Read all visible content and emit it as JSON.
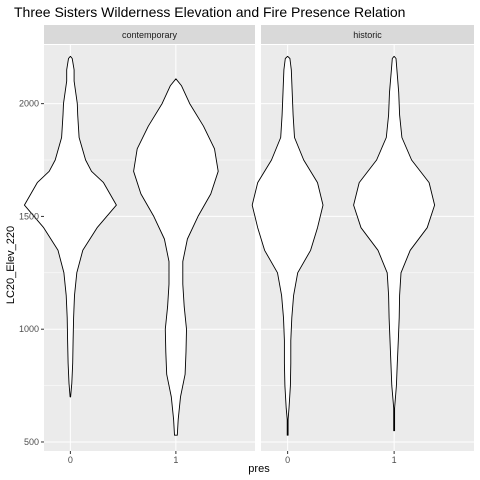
{
  "chart_data": {
    "type": "violin",
    "title": "Three Sisters Wilderness Elevation and Fire Presence Relation",
    "xlabel": "pres",
    "ylabel": "LC20_Elev_220",
    "ylim": [
      460,
      2260
    ],
    "yticks": [
      500,
      1000,
      1500,
      2000
    ],
    "categories": [
      "0",
      "1"
    ],
    "grid": true,
    "facets": [
      {
        "name": "contemporary",
        "violins": [
          {
            "category": "0",
            "density": [
              [
                700,
                0.005
              ],
              [
                760,
                0.03
              ],
              [
                850,
                0.05
              ],
              [
                950,
                0.06
              ],
              [
                1050,
                0.07
              ],
              [
                1150,
                0.09
              ],
              [
                1250,
                0.14
              ],
              [
                1350,
                0.27
              ],
              [
                1450,
                0.58
              ],
              [
                1550,
                1.0
              ],
              [
                1650,
                0.72
              ],
              [
                1700,
                0.46
              ],
              [
                1750,
                0.33
              ],
              [
                1850,
                0.19
              ],
              [
                1950,
                0.16
              ],
              [
                2000,
                0.15
              ],
              [
                2100,
                0.08
              ],
              [
                2150,
                0.08
              ],
              [
                2200,
                0.04
              ],
              [
                2210,
                0.0
              ]
            ]
          },
          {
            "category": "1",
            "density": [
              [
                530,
                0.03
              ],
              [
                600,
                0.05
              ],
              [
                700,
                0.1
              ],
              [
                800,
                0.2
              ],
              [
                900,
                0.22
              ],
              [
                1000,
                0.23
              ],
              [
                1100,
                0.18
              ],
              [
                1200,
                0.15
              ],
              [
                1300,
                0.15
              ],
              [
                1400,
                0.25
              ],
              [
                1500,
                0.48
              ],
              [
                1600,
                0.76
              ],
              [
                1700,
                0.92
              ],
              [
                1800,
                0.84
              ],
              [
                1900,
                0.6
              ],
              [
                2000,
                0.3
              ],
              [
                2080,
                0.12
              ],
              [
                2110,
                0.0
              ]
            ]
          }
        ]
      },
      {
        "name": "historic",
        "violins": [
          {
            "category": "0",
            "density": [
              [
                530,
                0.01
              ],
              [
                600,
                0.01
              ],
              [
                650,
                0.03
              ],
              [
                750,
                0.06
              ],
              [
                850,
                0.07
              ],
              [
                950,
                0.07
              ],
              [
                1050,
                0.09
              ],
              [
                1150,
                0.13
              ],
              [
                1250,
                0.22
              ],
              [
                1350,
                0.5
              ],
              [
                1450,
                0.65
              ],
              [
                1550,
                0.77
              ],
              [
                1650,
                0.65
              ],
              [
                1750,
                0.35
              ],
              [
                1850,
                0.15
              ],
              [
                1950,
                0.12
              ],
              [
                2050,
                0.1
              ],
              [
                2150,
                0.08
              ],
              [
                2200,
                0.05
              ],
              [
                2210,
                0.0
              ]
            ]
          },
          {
            "category": "1",
            "density": [
              [
                550,
                0.01
              ],
              [
                650,
                0.01
              ],
              [
                750,
                0.05
              ],
              [
                850,
                0.07
              ],
              [
                950,
                0.09
              ],
              [
                1050,
                0.11
              ],
              [
                1150,
                0.12
              ],
              [
                1250,
                0.15
              ],
              [
                1350,
                0.35
              ],
              [
                1450,
                0.72
              ],
              [
                1550,
                0.88
              ],
              [
                1650,
                0.76
              ],
              [
                1750,
                0.38
              ],
              [
                1850,
                0.17
              ],
              [
                1950,
                0.12
              ],
              [
                2050,
                0.1
              ],
              [
                2150,
                0.06
              ],
              [
                2200,
                0.04
              ],
              [
                2210,
                0.0
              ]
            ]
          }
        ]
      }
    ]
  },
  "colors": {
    "panel_bg": "#ebebeb",
    "strip_bg": "#d9d9d9",
    "grid_major": "#ffffff",
    "violin_fill": "#ffffff",
    "violin_stroke": "#000000"
  }
}
